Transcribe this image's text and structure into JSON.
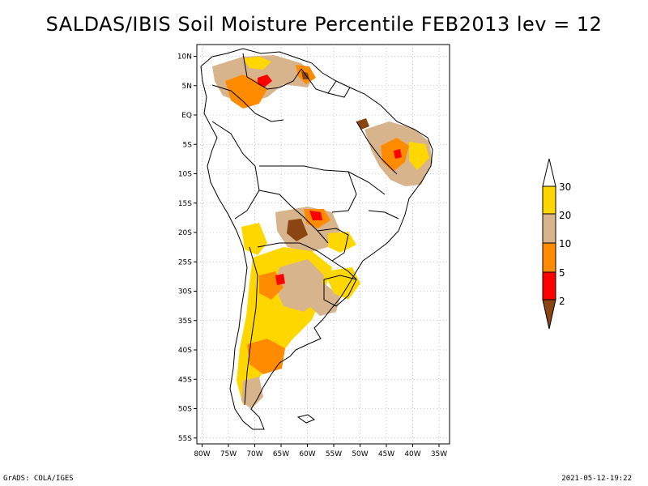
{
  "title": "SALDAS/IBIS Soil Moisture Percentile FEB2013 lev = 12",
  "footer": {
    "left": "GrADS: COLA/IGES",
    "right": "2021-05-12-19:22"
  },
  "axes": {
    "lon_ticks": [
      "80W",
      "75W",
      "70W",
      "65W",
      "60W",
      "55W",
      "50W",
      "45W",
      "40W",
      "35W"
    ],
    "lat_ticks": [
      "10N",
      "5N",
      "EQ",
      "5S",
      "10S",
      "15S",
      "20S",
      "25S",
      "30S",
      "35S",
      "40S",
      "45S",
      "50S",
      "55S"
    ],
    "lon_range": [
      -81,
      -33
    ],
    "lat_range": [
      12,
      -56
    ]
  },
  "colorbar": {
    "labels": [
      "30",
      "20",
      "10",
      "5",
      "2"
    ],
    "colors": {
      "above30": "#ffffff",
      "c20_30": "#ffd700",
      "c10_20": "#d8b48c",
      "c5_10": "#ff8c00",
      "c2_5": "#ff0000",
      "below2": "#8b4513"
    }
  },
  "colors": {
    "land_outline": "#000000",
    "grid": "#9a9a9a"
  }
}
